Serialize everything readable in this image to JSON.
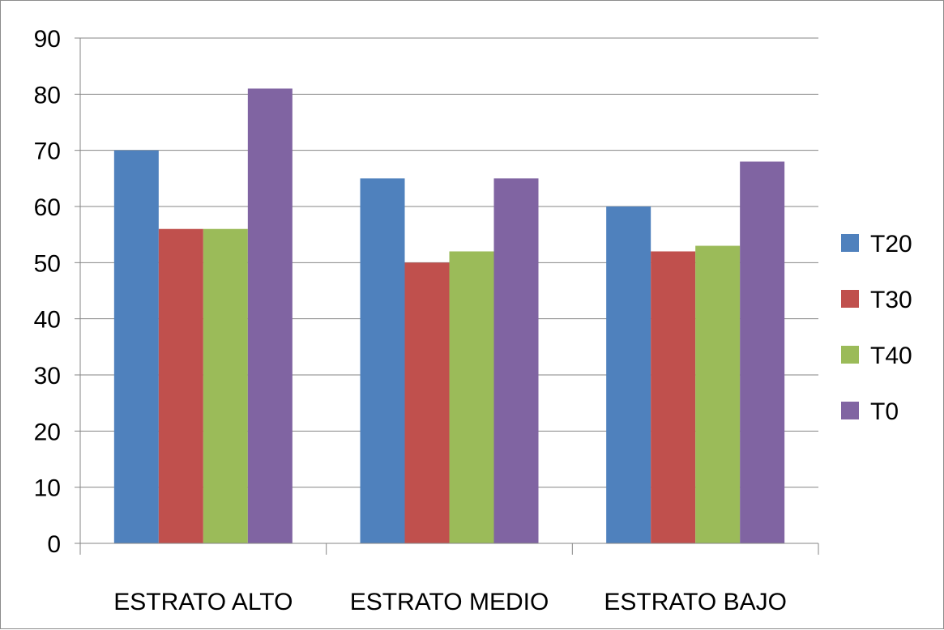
{
  "chart_data": {
    "type": "bar",
    "title": "",
    "xlabel": "",
    "ylabel": "",
    "categories": [
      "ESTRATO ALTO",
      "ESTRATO MEDIO",
      "ESTRATO BAJO"
    ],
    "series": [
      {
        "name": "T20",
        "color": "#4F81BD",
        "values": [
          70,
          65,
          60
        ]
      },
      {
        "name": "T30",
        "color": "#C0504D",
        "values": [
          56,
          50,
          52
        ]
      },
      {
        "name": "T40",
        "color": "#9BBB59",
        "values": [
          56,
          52,
          53
        ]
      },
      {
        "name": "T0",
        "color": "#8064A2",
        "values": [
          81,
          65,
          68
        ]
      }
    ],
    "ylim": [
      0,
      90
    ],
    "yticks": [
      0,
      10,
      20,
      30,
      40,
      50,
      60,
      70,
      80,
      90
    ],
    "grid": true,
    "legend": "right"
  }
}
